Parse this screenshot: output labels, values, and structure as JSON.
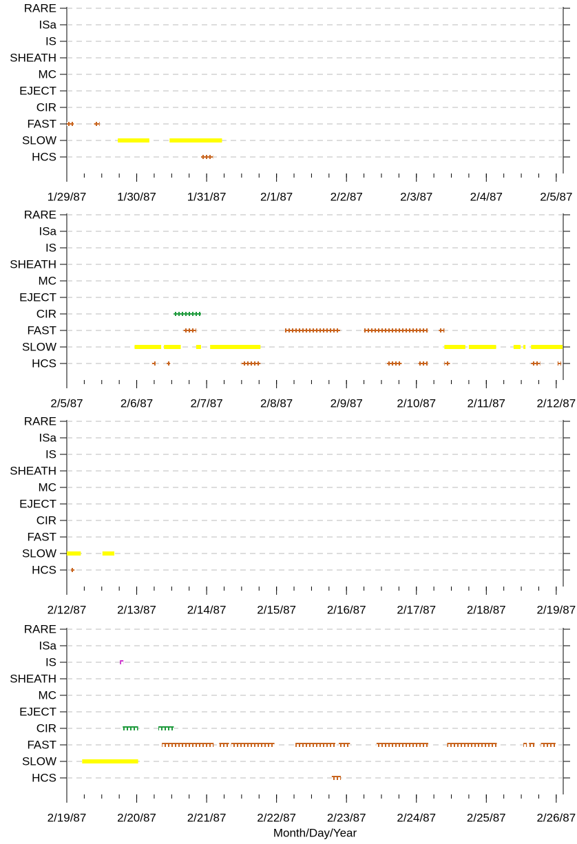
{
  "chart_data": [
    {
      "type": "timeline",
      "categories": [
        "RARE",
        "ISa",
        "IS",
        "SHEATH",
        "MC",
        "EJECT",
        "CIR",
        "FAST",
        "SLOW",
        "HCS"
      ],
      "xlim": [
        0,
        7.1
      ],
      "xticks": [
        {
          "value": 0,
          "label": "1/29/87"
        },
        {
          "value": 1,
          "label": "1/30/87"
        },
        {
          "value": 2,
          "label": "1/31/87"
        },
        {
          "value": 3,
          "label": "2/1/87"
        },
        {
          "value": 4,
          "label": "2/2/87"
        },
        {
          "value": 5,
          "label": "2/3/87"
        },
        {
          "value": 6,
          "label": "2/4/87"
        },
        {
          "value": 7,
          "label": "2/5/87"
        }
      ],
      "marks": {
        "IS": {
          "color": "#cc33cc",
          "style": "squares"
        },
        "CIR": {
          "color": "#1e9a3c",
          "style": "squares"
        },
        "FAST": {
          "color": "#c8641e",
          "style": "squares"
        },
        "SLOW": {
          "color": "#ffff00",
          "style": "bar"
        },
        "HCS": {
          "color": "#c8641e",
          "style": "squares"
        }
      },
      "intervals": [
        [],
        [],
        [],
        [],
        [],
        [],
        [],
        [
          [
            0,
            0.1
          ],
          [
            0.39,
            0.47
          ]
        ],
        [
          [
            0.73,
            1.18
          ],
          [
            1.47,
            2.22
          ]
        ],
        [
          [
            1.92,
            2.09
          ]
        ]
      ]
    },
    {
      "type": "timeline",
      "categories": [
        "RARE",
        "ISa",
        "IS",
        "SHEATH",
        "MC",
        "EJECT",
        "CIR",
        "FAST",
        "SLOW",
        "HCS"
      ],
      "xlim": [
        0,
        7.1
      ],
      "xticks": [
        {
          "value": 0,
          "label": "2/5/87"
        },
        {
          "value": 1,
          "label": "2/6/87"
        },
        {
          "value": 2,
          "label": "2/7/87"
        },
        {
          "value": 3,
          "label": "2/8/87"
        },
        {
          "value": 4,
          "label": "2/9/87"
        },
        {
          "value": 5,
          "label": "2/10/87"
        },
        {
          "value": 6,
          "label": "2/11/87"
        },
        {
          "value": 7,
          "label": "2/12/87"
        }
      ],
      "marks": {
        "IS": {
          "color": "#cc33cc",
          "style": "squares"
        },
        "CIR": {
          "color": "#1e9a3c",
          "style": "squares"
        },
        "FAST": {
          "color": "#c8641e",
          "style": "squares"
        },
        "SLOW": {
          "color": "#ffff00",
          "style": "bar"
        },
        "HCS": {
          "color": "#c8641e",
          "style": "squares"
        }
      },
      "intervals": [
        [],
        [],
        [],
        [],
        [],
        [],
        [
          [
            1.53,
            1.92
          ]
        ],
        [
          [
            1.67,
            1.85
          ],
          [
            3.12,
            3.91
          ],
          [
            4.25,
            5.16
          ],
          [
            5.32,
            5.4
          ]
        ],
        [
          [
            0.97,
            1.35
          ],
          [
            1.39,
            1.63
          ],
          [
            1.85,
            1.92
          ],
          [
            2.05,
            2.77
          ],
          [
            5.4,
            5.7
          ],
          [
            5.75,
            6.14
          ],
          [
            6.39,
            6.49
          ],
          [
            6.53,
            6.56
          ],
          [
            6.64,
            7.09
          ]
        ],
        [
          [
            1.22,
            1.26
          ],
          [
            1.43,
            1.47
          ],
          [
            2.5,
            2.77
          ],
          [
            4.58,
            4.79
          ],
          [
            5.03,
            5.16
          ],
          [
            5.4,
            5.48
          ],
          [
            6.64,
            6.77
          ],
          [
            7.02,
            7.06
          ]
        ]
      ]
    },
    {
      "type": "timeline",
      "categories": [
        "RARE",
        "ISa",
        "IS",
        "SHEATH",
        "MC",
        "EJECT",
        "CIR",
        "FAST",
        "SLOW",
        "HCS"
      ],
      "xlim": [
        0,
        7.1
      ],
      "xticks": [
        {
          "value": 0,
          "label": "2/12/87"
        },
        {
          "value": 1,
          "label": "2/13/87"
        },
        {
          "value": 2,
          "label": "2/14/87"
        },
        {
          "value": 3,
          "label": "2/15/87"
        },
        {
          "value": 4,
          "label": "2/16/87"
        },
        {
          "value": 5,
          "label": "2/17/87"
        },
        {
          "value": 6,
          "label": "2/18/87"
        },
        {
          "value": 7,
          "label": "2/19/87"
        }
      ],
      "marks": {
        "IS": {
          "color": "#cc33cc",
          "style": "squares"
        },
        "CIR": {
          "color": "#1e9a3c",
          "style": "squares"
        },
        "FAST": {
          "color": "#c8641e",
          "style": "squares"
        },
        "SLOW": {
          "color": "#ffff00",
          "style": "bar"
        },
        "HCS": {
          "color": "#c8641e",
          "style": "squares"
        }
      },
      "intervals": [
        [],
        [],
        [],
        [],
        [],
        [],
        [],
        [],
        [
          [
            0,
            0.2
          ],
          [
            0.51,
            0.68
          ]
        ],
        [
          [
            0.06,
            0.1
          ]
        ]
      ]
    },
    {
      "type": "timeline",
      "categories": [
        "RARE",
        "ISa",
        "IS",
        "SHEATH",
        "MC",
        "EJECT",
        "CIR",
        "FAST",
        "SLOW",
        "HCS"
      ],
      "xlim": [
        0,
        7.1
      ],
      "xticks": [
        {
          "value": 0,
          "label": "2/19/87"
        },
        {
          "value": 1,
          "label": "2/20/87"
        },
        {
          "value": 2,
          "label": "2/21/87"
        },
        {
          "value": 3,
          "label": "2/22/87"
        },
        {
          "value": 4,
          "label": "2/23/87"
        },
        {
          "value": 5,
          "label": "2/24/87"
        },
        {
          "value": 6,
          "label": "2/25/87"
        },
        {
          "value": 7,
          "label": "2/26/87"
        }
      ],
      "x_label": "Month/Day/Year",
      "marks": {
        "IS": {
          "color": "#cc33cc",
          "style": "squares"
        },
        "CIR": {
          "color": "#1e9a3c",
          "style": "squares"
        },
        "FAST": {
          "color": "#c8641e",
          "style": "squares"
        },
        "SLOW": {
          "color": "#ffff00",
          "style": "bar"
        },
        "HCS": {
          "color": "#c8641e",
          "style": "squares"
        }
      },
      "intervals": [
        [],
        [],
        [
          [
            0.76,
            0.8
          ]
        ],
        [],
        [],
        [],
        [
          [
            0.8,
            1.02
          ],
          [
            1.31,
            1.53
          ]
        ],
        [
          [
            1.36,
            2.1
          ],
          [
            2.18,
            2.32
          ],
          [
            2.35,
            2.97
          ],
          [
            3.27,
            3.84
          ],
          [
            3.89,
            4.05
          ],
          [
            4.43,
            5.17
          ],
          [
            5.44,
            6.15
          ],
          [
            6.53,
            6.58
          ],
          [
            6.61,
            6.69
          ],
          [
            6.78,
            6.99
          ]
        ],
        [
          [
            0.22,
            1.02
          ]
        ],
        [
          [
            3.79,
            3.92
          ]
        ]
      ]
    }
  ]
}
